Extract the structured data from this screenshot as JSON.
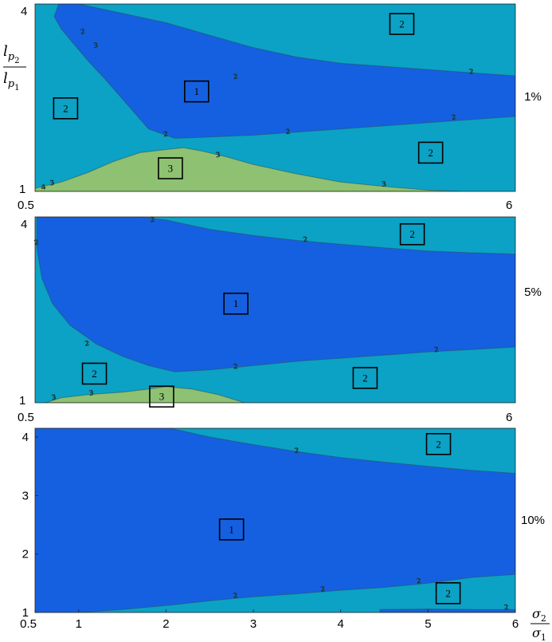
{
  "chart_data": {
    "type": "area",
    "colors": {
      "region1": "#1560e0",
      "region2": "#0ba2c5",
      "region3": "#8ec172",
      "contour": "#2b4f5a"
    },
    "axes": {
      "ylabel_num_base": "l",
      "ylabel_num_sub": "p",
      "ylabel_num_subsub": "2",
      "ylabel_den_base": "l",
      "ylabel_den_sub": "p",
      "ylabel_den_subsub": "1",
      "xlabel_num_base": "σ",
      "xlabel_num_sub": "2",
      "xlabel_den_base": "σ",
      "xlabel_den_sub": "1"
    },
    "panels": [
      {
        "label": "1%",
        "xlim": [
          0.5,
          6
        ],
        "ylim": [
          1,
          4
        ],
        "x_ticks": [
          "0.5",
          "6"
        ],
        "y_ticks": [
          "1",
          "4"
        ],
        "regions": [
          {
            "id": "1",
            "label": "1",
            "points": [
              [
                0.77,
                4.0
              ],
              [
                0.72,
                3.8
              ],
              [
                0.8,
                3.6
              ],
              [
                0.95,
                3.35
              ],
              [
                1.1,
                3.1
              ],
              [
                1.3,
                2.8
              ],
              [
                1.55,
                2.4
              ],
              [
                1.8,
                2.0
              ],
              [
                2.1,
                1.85
              ],
              [
                2.5,
                1.87
              ],
              [
                3,
                1.9
              ],
              [
                3.5,
                1.95
              ],
              [
                4,
                2.0
              ],
              [
                4.5,
                2.05
              ],
              [
                5,
                2.1
              ],
              [
                5.5,
                2.15
              ],
              [
                6,
                2.2
              ],
              [
                6,
                2.85
              ],
              [
                5.5,
                2.9
              ],
              [
                5,
                2.95
              ],
              [
                4.5,
                3.0
              ],
              [
                4,
                3.05
              ],
              [
                3.5,
                3.15
              ],
              [
                3,
                3.3
              ],
              [
                2.5,
                3.5
              ],
              [
                2,
                3.7
              ],
              [
                1.5,
                3.85
              ],
              [
                1.0,
                4.0
              ]
            ]
          },
          {
            "id": "3",
            "label": "3",
            "points": [
              [
                0.5,
                1.0
              ],
              [
                0.5,
                1.05
              ],
              [
                0.8,
                1.15
              ],
              [
                1.1,
                1.3
              ],
              [
                1.4,
                1.48
              ],
              [
                1.7,
                1.62
              ],
              [
                2.0,
                1.67
              ],
              [
                2.2,
                1.7
              ],
              [
                2.4,
                1.65
              ],
              [
                2.7,
                1.55
              ],
              [
                3.0,
                1.43
              ],
              [
                3.5,
                1.28
              ],
              [
                4.0,
                1.15
              ],
              [
                4.5,
                1.08
              ],
              [
                5.0,
                1.02
              ],
              [
                5.4,
                1.0
              ]
            ]
          }
        ],
        "contour_labels": [
          {
            "text": "2",
            "x": 1.05,
            "y": 3.52
          },
          {
            "text": "2",
            "x": 2.8,
            "y": 2.8
          },
          {
            "text": "2",
            "x": 3.4,
            "y": 1.92
          },
          {
            "text": "2",
            "x": 5.5,
            "y": 2.88
          },
          {
            "text": "2",
            "x": 5.3,
            "y": 2.15
          },
          {
            "text": "3",
            "x": 1.2,
            "y": 3.3
          },
          {
            "text": "2",
            "x": 2.0,
            "y": 1.88
          },
          {
            "text": "3",
            "x": 0.7,
            "y": 1.1
          },
          {
            "text": "3",
            "x": 2.6,
            "y": 1.55
          },
          {
            "text": "3",
            "x": 4.5,
            "y": 1.08
          },
          {
            "text": "4",
            "x": 0.6,
            "y": 1.03
          }
        ],
        "boxes": [
          {
            "text": "2",
            "x": 4.7,
            "y": 3.68
          },
          {
            "text": "1",
            "x": 2.35,
            "y": 2.6
          },
          {
            "text": "2",
            "x": 0.85,
            "y": 2.33
          },
          {
            "text": "2",
            "x": 5.03,
            "y": 1.62
          },
          {
            "text": "3",
            "x": 2.05,
            "y": 1.37
          }
        ]
      },
      {
        "label": "5%",
        "xlim": [
          0.5,
          6
        ],
        "ylim": [
          1,
          4
        ],
        "x_ticks": [
          "0.5",
          "6"
        ],
        "y_ticks": [
          "1",
          "4"
        ],
        "regions": [
          {
            "id": "1",
            "label": "1",
            "points": [
              [
                0.52,
                4.0
              ],
              [
                0.52,
                3.5
              ],
              [
                0.58,
                3.0
              ],
              [
                0.7,
                2.6
              ],
              [
                0.9,
                2.25
              ],
              [
                1.2,
                1.95
              ],
              [
                1.5,
                1.75
              ],
              [
                1.8,
                1.6
              ],
              [
                2.1,
                1.5
              ],
              [
                2.5,
                1.53
              ],
              [
                3,
                1.6
              ],
              [
                3.5,
                1.67
              ],
              [
                4,
                1.72
              ],
              [
                4.5,
                1.77
              ],
              [
                5,
                1.82
              ],
              [
                5.5,
                1.86
              ],
              [
                6,
                1.9
              ],
              [
                6,
                3.4
              ],
              [
                5.5,
                3.42
              ],
              [
                5,
                3.45
              ],
              [
                4.5,
                3.5
              ],
              [
                4,
                3.56
              ],
              [
                3.5,
                3.62
              ],
              [
                3,
                3.7
              ],
              [
                2.5,
                3.8
              ],
              [
                2.0,
                3.95
              ],
              [
                1.7,
                4.0
              ]
            ]
          },
          {
            "id": "3",
            "label": "3",
            "points": [
              [
                0.62,
                1.0
              ],
              [
                0.8,
                1.08
              ],
              [
                1.1,
                1.13
              ],
              [
                1.5,
                1.17
              ],
              [
                1.8,
                1.22
              ],
              [
                2.0,
                1.26
              ],
              [
                2.3,
                1.22
              ],
              [
                2.6,
                1.13
              ],
              [
                2.9,
                1.0
              ]
            ]
          }
        ],
        "contour_labels": [
          {
            "text": "2",
            "x": 1.85,
            "y": 3.92
          },
          {
            "text": "2",
            "x": 3.6,
            "y": 3.6
          },
          {
            "text": "2",
            "x": 0.52,
            "y": 3.55
          },
          {
            "text": "2",
            "x": 1.1,
            "y": 1.92
          },
          {
            "text": "2",
            "x": 2.8,
            "y": 1.55
          },
          {
            "text": "2",
            "x": 5.1,
            "y": 1.82
          },
          {
            "text": "3",
            "x": 1.15,
            "y": 1.12
          },
          {
            "text": "3",
            "x": 0.72,
            "y": 1.05
          }
        ],
        "boxes": [
          {
            "text": "2",
            "x": 4.82,
            "y": 3.72
          },
          {
            "text": "1",
            "x": 2.8,
            "y": 2.6
          },
          {
            "text": "2",
            "x": 1.18,
            "y": 1.47
          },
          {
            "text": "2",
            "x": 4.28,
            "y": 1.4
          },
          {
            "text": "3",
            "x": 1.95,
            "y": 1.1
          }
        ]
      },
      {
        "label": "10%",
        "xlim": [
          0.5,
          6
        ],
        "ylim": [
          1,
          4.15
        ],
        "x_ticks": [
          "0.5",
          "1",
          "2",
          "3",
          "4",
          "5",
          "6"
        ],
        "y_ticks": [
          "1",
          "2",
          "3",
          "4"
        ],
        "regions": [
          {
            "id": "1",
            "label": "1",
            "points": [
              [
                0.5,
                1.0
              ],
              [
                0.5,
                4.15
              ],
              [
                2.05,
                4.15
              ],
              [
                2.5,
                4.0
              ],
              [
                3,
                3.87
              ],
              [
                3.5,
                3.75
              ],
              [
                4,
                3.65
              ],
              [
                4.5,
                3.57
              ],
              [
                5,
                3.5
              ],
              [
                5.5,
                3.43
              ],
              [
                6,
                3.38
              ],
              [
                6,
                1.65
              ],
              [
                5.5,
                1.6
              ],
              [
                5,
                1.5
              ],
              [
                4.5,
                1.43
              ],
              [
                4,
                1.38
              ],
              [
                3.5,
                1.32
              ],
              [
                3,
                1.27
              ],
              [
                2.5,
                1.2
              ],
              [
                2,
                1.12
              ],
              [
                1.5,
                1.05
              ],
              [
                1.0,
                1.0
              ]
            ]
          },
          {
            "id": "1b",
            "label": "",
            "points": [
              [
                4.45,
                1.0
              ],
              [
                4.45,
                1.05
              ],
              [
                5.0,
                1.06
              ],
              [
                5.5,
                1.05
              ],
              [
                6,
                1.05
              ],
              [
                6,
                1.0
              ]
            ]
          }
        ],
        "contour_labels": [
          {
            "text": "2",
            "x": 3.5,
            "y": 3.73
          },
          {
            "text": "2",
            "x": 3.8,
            "y": 1.36
          },
          {
            "text": "2",
            "x": 4.9,
            "y": 1.5
          },
          {
            "text": "2",
            "x": 2.8,
            "y": 1.25
          },
          {
            "text": "2",
            "x": 5.9,
            "y": 1.05
          }
        ],
        "boxes": [
          {
            "text": "2",
            "x": 5.12,
            "y": 3.88
          },
          {
            "text": "1",
            "x": 2.75,
            "y": 2.42
          },
          {
            "text": "2",
            "x": 5.23,
            "y": 1.33
          }
        ]
      }
    ]
  }
}
